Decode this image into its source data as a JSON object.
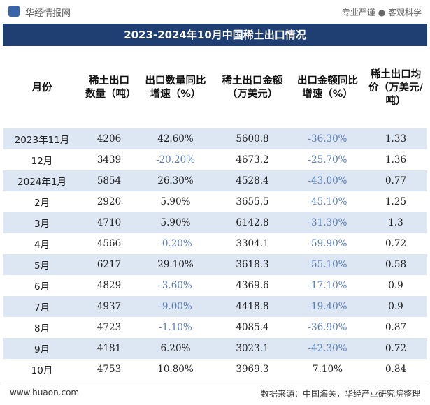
{
  "header": {
    "logo": "华经情报网",
    "slogan": "专业严谨 ● 客观科学",
    "title": "2023-2024年10月中国稀土出口情况"
  },
  "table": {
    "columns": [
      "月份",
      "稀土出口数量（吨）",
      "出口数量同比增速（%）",
      "稀土出口金额（万美元）",
      "出口金额同比增速（%）",
      "稀土出口均价（万美元/吨）"
    ],
    "rows": [
      [
        "2023年11月",
        "4206",
        "42.60%",
        "5600.8",
        "-36.30%",
        "1.33"
      ],
      [
        "12月",
        "3439",
        "-20.20%",
        "4673.2",
        "-25.70%",
        "1.36"
      ],
      [
        "2024年1月",
        "5854",
        "26.30%",
        "4528.4",
        "-43.00%",
        "0.77"
      ],
      [
        "2月",
        "2920",
        "5.90%",
        "3655.5",
        "-45.10%",
        "1.25"
      ],
      [
        "3月",
        "4710",
        "5.90%",
        "6142.8",
        "-31.30%",
        "1.3"
      ],
      [
        "4月",
        "4566",
        "-0.20%",
        "3304.1",
        "-59.90%",
        "0.72"
      ],
      [
        "5月",
        "6217",
        "29.10%",
        "3618.3",
        "-55.10%",
        "0.58"
      ],
      [
        "6月",
        "4829",
        "-3.60%",
        "4369.6",
        "-17.10%",
        "0.9"
      ],
      [
        "7月",
        "4937",
        "-9.00%",
        "4418.8",
        "-19.40%",
        "0.9"
      ],
      [
        "8月",
        "4723",
        "-1.10%",
        "4085.4",
        "-36.90%",
        "0.87"
      ],
      [
        "9月",
        "4181",
        "6.20%",
        "3023.1",
        "-42.30%",
        "0.72"
      ],
      [
        "10月",
        "4753",
        "10.80%",
        "3969.3",
        "7.10%",
        "0.84"
      ]
    ]
  },
  "footer": {
    "site": "www.huaon.com",
    "source": "数据来源：中国海关，华经产业研究院整理"
  }
}
